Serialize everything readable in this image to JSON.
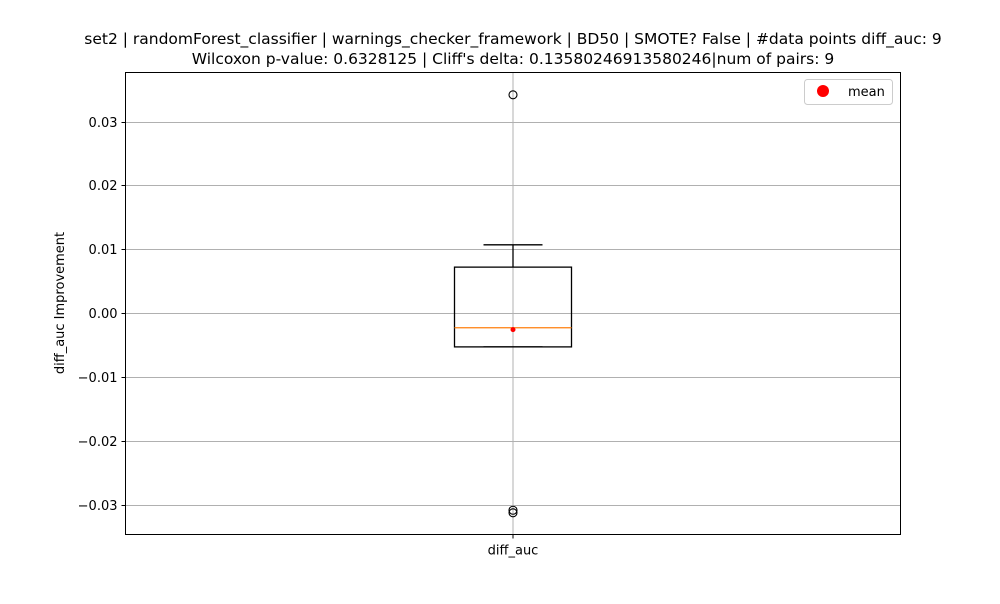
{
  "chart_data": {
    "type": "box",
    "title": "set2 | randomForest_classifier | warnings_checker_framework | BD50 | SMOTE? False | #data points diff_auc: 9",
    "subtitle": "Wilcoxon p-value: 0.6328125 | Cliff's delta: 0.13580246913580246|num of pairs: 9",
    "xlabel": "",
    "ylabel": "diff_auc Improvement",
    "categories": [
      "diff_auc"
    ],
    "ylim": [
      -0.0347,
      0.0377
    ],
    "yticks": [
      0.03,
      0.02,
      0.01,
      0.0,
      -0.01,
      -0.02,
      -0.03
    ],
    "ytick_labels": [
      "0.03",
      "0.02",
      "0.01",
      "0.00",
      "−0.01",
      "−0.02",
      "−0.03"
    ],
    "grid": true,
    "legend_position": "top-right",
    "legend": [
      {
        "label": "mean",
        "marker": "circle",
        "color": "#ff0000"
      }
    ],
    "boxes": [
      {
        "name": "diff_auc",
        "whisker_low": -0.0053,
        "q1": -0.0053,
        "median": -0.0023,
        "q3": 0.0072,
        "whisker_high": 0.0107,
        "mean": -0.0026,
        "outliers": [
          0.0342,
          -0.0309,
          -0.0313
        ]
      }
    ],
    "colors": {
      "box": "#000000",
      "median": "#ff7f0e",
      "mean": "#ff0000",
      "grid": "#b0b0b0"
    }
  }
}
